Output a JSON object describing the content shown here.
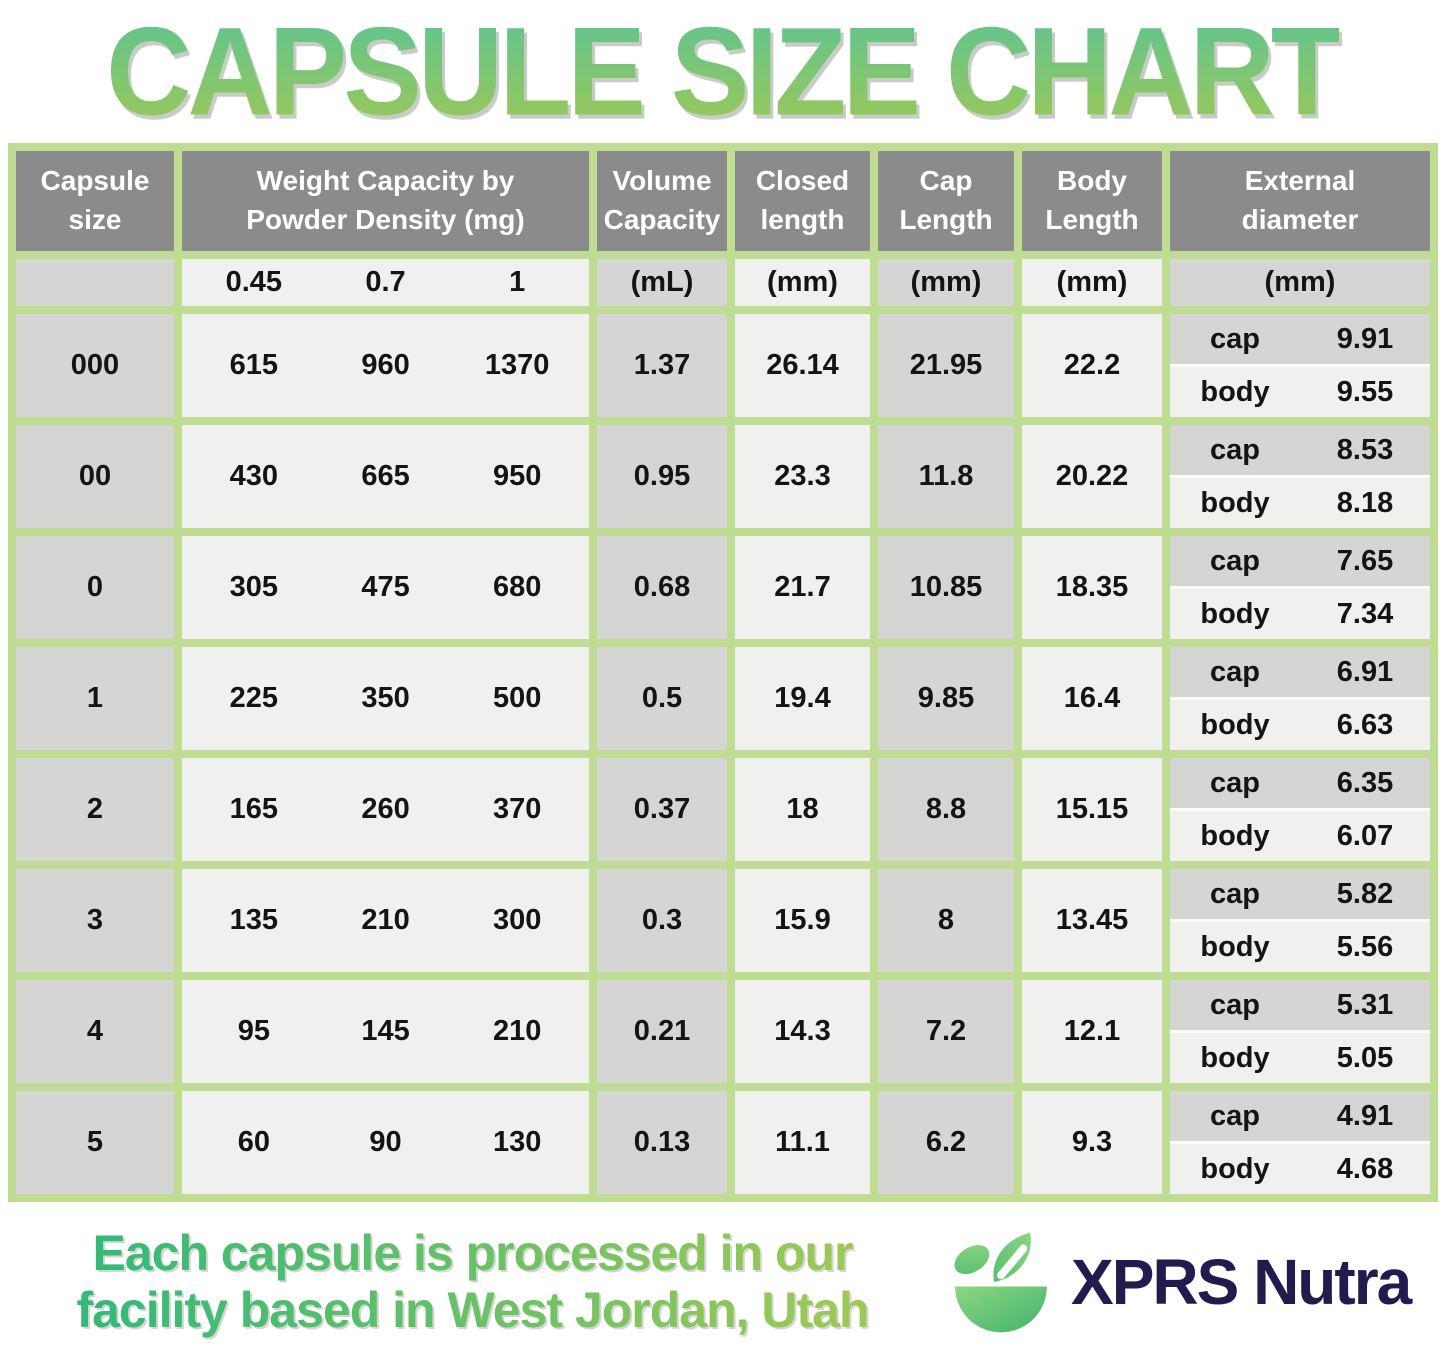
{
  "title": "CAPSULE SIZE CHART",
  "table": {
    "header_lines": [
      [
        "Capsule size",
        ""
      ],
      [
        "Weight Capacity by",
        "Powder Density (mg)"
      ],
      [
        "Volume",
        "Capacity"
      ],
      [
        "Closed",
        "length"
      ],
      [
        "Cap",
        "Length"
      ],
      [
        "Body",
        "Length"
      ],
      [
        "External",
        "diameter"
      ]
    ],
    "units": {
      "densities": [
        "0.45",
        "0.7",
        "1"
      ],
      "volume": "(mL)",
      "closed": "(mm)",
      "cap": "(mm)",
      "body": "(mm)",
      "external": "(mm)"
    },
    "sub_labels": {
      "cap": "cap",
      "body": "body"
    }
  },
  "chart_data": {
    "type": "table",
    "title": "CAPSULE SIZE CHART",
    "columns": [
      "Capsule size",
      "Weight capacity at powder density 0.45 (mg)",
      "Weight capacity at powder density 0.7 (mg)",
      "Weight capacity at powder density 1 (mg)",
      "Volume Capacity (mL)",
      "Closed length (mm)",
      "Cap Length (mm)",
      "Body Length (mm)",
      "External diameter cap (mm)",
      "External diameter body (mm)"
    ],
    "rows": [
      [
        "000",
        615,
        960,
        1370,
        1.37,
        26.14,
        21.95,
        22.2,
        9.91,
        9.55
      ],
      [
        "00",
        430,
        665,
        950,
        0.95,
        23.3,
        11.8,
        20.22,
        8.53,
        8.18
      ],
      [
        "0",
        305,
        475,
        680,
        0.68,
        21.7,
        10.85,
        18.35,
        7.65,
        7.34
      ],
      [
        "1",
        225,
        350,
        500,
        0.5,
        19.4,
        9.85,
        16.4,
        6.91,
        6.63
      ],
      [
        "2",
        165,
        260,
        370,
        0.37,
        18,
        8.8,
        15.15,
        6.35,
        6.07
      ],
      [
        "3",
        135,
        210,
        300,
        0.3,
        15.9,
        8,
        13.45,
        5.82,
        5.56
      ],
      [
        "4",
        95,
        145,
        210,
        0.21,
        14.3,
        7.2,
        12.1,
        5.31,
        5.05
      ],
      [
        "5",
        60,
        90,
        130,
        0.13,
        11.1,
        6.2,
        9.3,
        4.91,
        4.68
      ]
    ]
  },
  "footer": {
    "line1": "Each capsule is processed in our",
    "line2": "facility based in West Jordan, Utah",
    "brand": "XPRS Nutra"
  },
  "colors": {
    "border_green": "#bedc92",
    "header_gray": "#8b8b8b",
    "cell_gray": "#d5d5d3",
    "cell_light": "#f0f0ee",
    "title_gradient_top": "#5ec492",
    "title_gradient_bottom": "#9fc854",
    "tagline_gradient_left": "#2eb87a",
    "tagline_gradient_right": "#a9cb51",
    "brand_navy": "#221c4e",
    "logo_green_light": "#8ed584",
    "logo_green_dark": "#41b469"
  }
}
